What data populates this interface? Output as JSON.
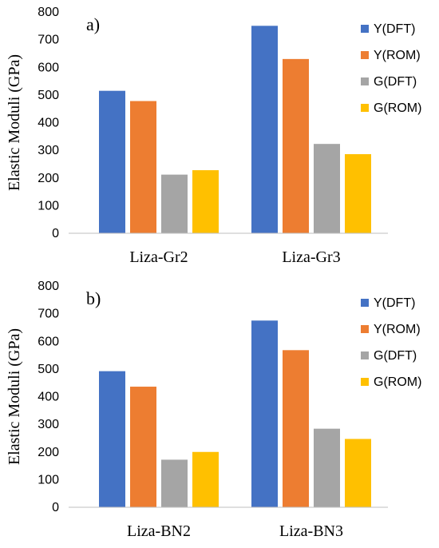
{
  "chart_data": [
    {
      "type": "bar",
      "panel_label": "a)",
      "title": "",
      "xlabel": "",
      "ylabel": "Elastic Moduli (GPa)",
      "ylim": [
        0,
        800
      ],
      "yticks": [
        0,
        100,
        200,
        300,
        400,
        500,
        600,
        700,
        800
      ],
      "grid": false,
      "legend_position": "right",
      "categories": [
        "Liza-Gr2",
        "Liza-Gr3"
      ],
      "series": [
        {
          "name": "Y(DFT)",
          "color": "#4472C4",
          "values": [
            515,
            750
          ]
        },
        {
          "name": "Y(ROM)",
          "color": "#ED7D31",
          "values": [
            478,
            630
          ]
        },
        {
          "name": "G(DFT)",
          "color": "#A5A5A5",
          "values": [
            212,
            323
          ]
        },
        {
          "name": "G(ROM)",
          "color": "#FFC000",
          "values": [
            228,
            286
          ]
        }
      ]
    },
    {
      "type": "bar",
      "panel_label": "b)",
      "title": "",
      "xlabel": "",
      "ylabel": "Elastic Moduli (GPa)",
      "ylim": [
        0,
        800
      ],
      "yticks": [
        0,
        100,
        200,
        300,
        400,
        500,
        600,
        700,
        800
      ],
      "grid": false,
      "legend_position": "right",
      "categories": [
        "Liza-BN2",
        "Liza-BN3"
      ],
      "series": [
        {
          "name": "Y(DFT)",
          "color": "#4472C4",
          "values": [
            492,
            675
          ]
        },
        {
          "name": "Y(ROM)",
          "color": "#ED7D31",
          "values": [
            436,
            568
          ]
        },
        {
          "name": "G(DFT)",
          "color": "#A5A5A5",
          "values": [
            172,
            284
          ]
        },
        {
          "name": "G(ROM)",
          "color": "#FFC000",
          "values": [
            200,
            247
          ]
        }
      ]
    }
  ]
}
